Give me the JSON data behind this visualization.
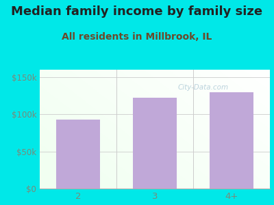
{
  "title": "Median family income by family size",
  "subtitle": "All residents in Millbrook, IL",
  "categories": [
    "2",
    "3",
    "4+"
  ],
  "values": [
    93000,
    122000,
    130000
  ],
  "bar_color": "#c0a8d8",
  "background_color": "#00e8e8",
  "yticks": [
    0,
    50000,
    100000,
    150000
  ],
  "ytick_labels": [
    "$0",
    "$50k",
    "$100k",
    "$150k"
  ],
  "ylim": [
    0,
    160000
  ],
  "title_fontsize": 13,
  "subtitle_fontsize": 10,
  "title_color": "#222222",
  "subtitle_color": "#6a4a2a",
  "tick_color": "#7a8a7a",
  "watermark": "City-Data.com"
}
